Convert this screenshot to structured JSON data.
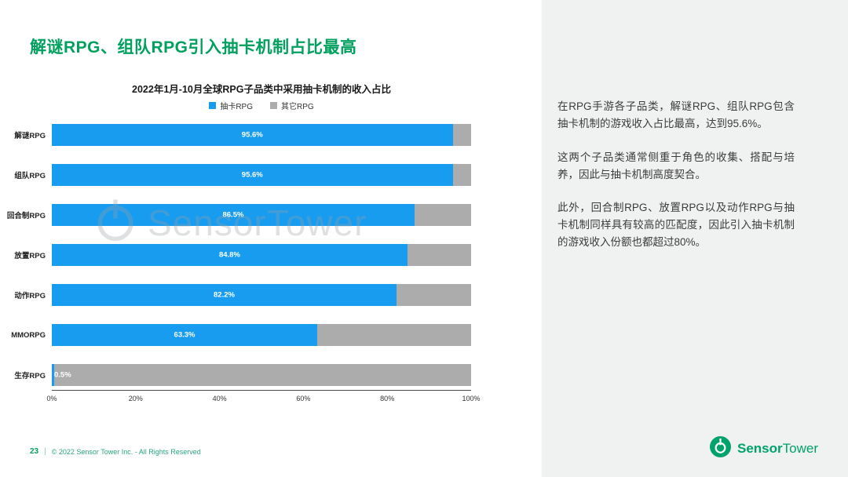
{
  "page": {
    "title": "解谜RPG、组队RPG引入抽卡机制占比最高",
    "watermark": "SensorTower",
    "footer": {
      "page_number": "23",
      "divider": "|",
      "copyright": "© 2022 Sensor Tower Inc. - All Rights Reserved"
    },
    "brand": {
      "name_bold": "Sensor",
      "name_regular": "Tower"
    }
  },
  "chart_data": {
    "type": "bar",
    "orientation": "horizontal",
    "stacked": true,
    "title": "2022年1月-10月全球RPG子品类中采用抽卡机制的收入占比",
    "categories": [
      "解谜RPG",
      "组队RPG",
      "回合制RPG",
      "放置RPG",
      "动作RPG",
      "MMORPG",
      "生存RPG"
    ],
    "series": [
      {
        "name": "抽卡RPG",
        "color": "#189CF0",
        "values": [
          95.6,
          95.6,
          86.5,
          84.8,
          82.2,
          63.3,
          0.5
        ]
      },
      {
        "name": "其它RPG",
        "color": "#ACACAC",
        "values": [
          4.4,
          4.4,
          13.5,
          15.2,
          17.8,
          36.7,
          99.5
        ]
      }
    ],
    "value_labels": [
      "95.6%",
      "95.6%",
      "86.5%",
      "84.8%",
      "82.2%",
      "63.3%",
      "0.5%"
    ],
    "x_ticks": [
      "0%",
      "20%",
      "40%",
      "60%",
      "80%",
      "100%"
    ],
    "xlim": [
      0,
      100
    ],
    "legend_position": "top",
    "grid": false
  },
  "sidebar": {
    "paragraphs": [
      "在RPG手游各子品类，解谜RPG、组队RPG包含抽卡机制的游戏收入占比最高，达到95.6%。",
      "这两个子品类通常侧重于角色的收集、搭配与培养，因此与抽卡机制高度契合。",
      "此外，回合制RPG、放置RPG以及动作RPG与抽卡机制同样具有较高的匹配度，因此引入抽卡机制的游戏收入份额也都超过80%。"
    ]
  },
  "colors": {
    "accent_green": "#00A05E",
    "bar_blue": "#189CF0",
    "bar_gray": "#ACACAC",
    "panel_bg": "#F0F1F1"
  }
}
